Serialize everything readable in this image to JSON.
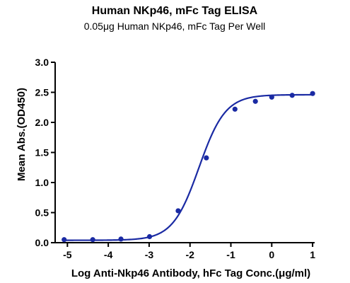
{
  "colors": {
    "series": "#1a2aa3",
    "axis": "#000000"
  },
  "chart_data": {
    "type": "scatter",
    "title": "Human NKp46, mFc Tag ELISA",
    "subtitle": "0.05μg Human NKp46, mFc Tag Per Well",
    "xlabel": "Log Anti-Nkp46 Antibody, hFc Tag Conc.(μg/ml)",
    "ylabel": "Mean Abs.(OD450)",
    "xlim": [
      -5.3,
      1.05
    ],
    "ylim": [
      0,
      3.0
    ],
    "xticks": [
      -5,
      -4,
      -3,
      -2,
      -1,
      0,
      1
    ],
    "xtick_labels": [
      "-5",
      "-4",
      "-3",
      "-2",
      "-1",
      "0",
      "1"
    ],
    "yticks": [
      0.0,
      0.5,
      1.0,
      1.5,
      2.0,
      2.5,
      3.0
    ],
    "ytick_labels": [
      "0.0",
      "0.5",
      "1.0",
      "1.5",
      "2.0",
      "2.5",
      "3.0"
    ],
    "grid": false,
    "legend": "none",
    "series": [
      {
        "x": [
          -5.08,
          -4.38,
          -3.69,
          -2.99,
          -2.29,
          -1.6,
          -0.9,
          -0.4,
          0.0,
          0.5,
          1.0
        ],
        "y": [
          0.05,
          0.05,
          0.06,
          0.1,
          0.53,
          1.41,
          2.22,
          2.35,
          2.42,
          2.45,
          2.48
        ],
        "fit": "4PL",
        "fit_params": {
          "bottom": 0.04,
          "top": 2.46,
          "log_ec50": -1.78,
          "hill": 1.35
        }
      }
    ]
  }
}
